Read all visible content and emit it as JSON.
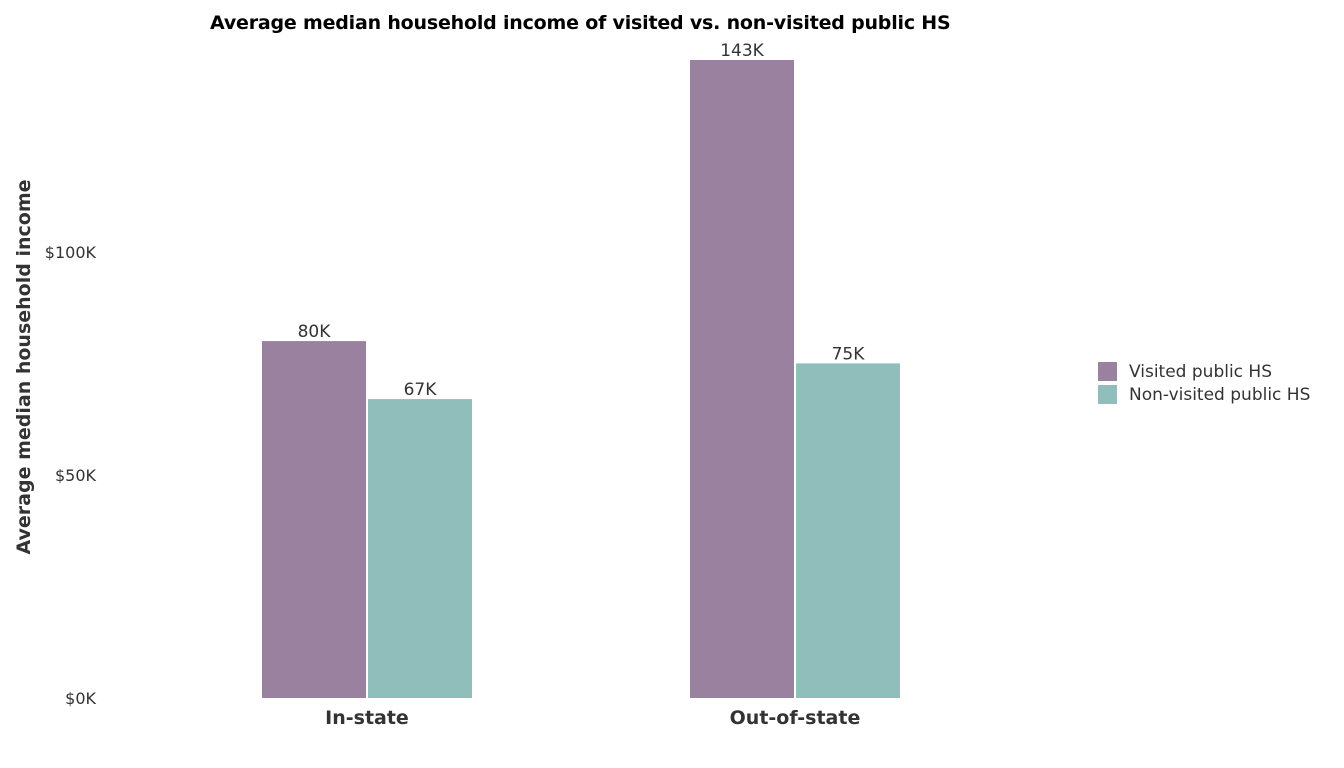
{
  "chart_data": {
    "type": "bar",
    "title": "Average median household income of visited vs. non-visited public HS",
    "xlabel": "",
    "ylabel": "Average median household income",
    "categories": [
      "In-state",
      "Out-of-state"
    ],
    "series": [
      {
        "name": "Visited public HS",
        "color": "#9a81a0",
        "values": [
          80,
          143
        ],
        "labels": [
          "80K",
          "143K"
        ]
      },
      {
        "name": "Non-visited public HS",
        "color": "#90bfbb",
        "values": [
          67,
          75
        ],
        "labels": [
          "67K",
          "75K"
        ]
      }
    ],
    "unit": "thousands of dollars",
    "ylim": [
      0,
      143
    ],
    "yticks": [
      0,
      50,
      100
    ],
    "ytick_labels": [
      "$0K",
      "$50K",
      "$100K"
    ],
    "grid": false,
    "legend_position": "right"
  }
}
